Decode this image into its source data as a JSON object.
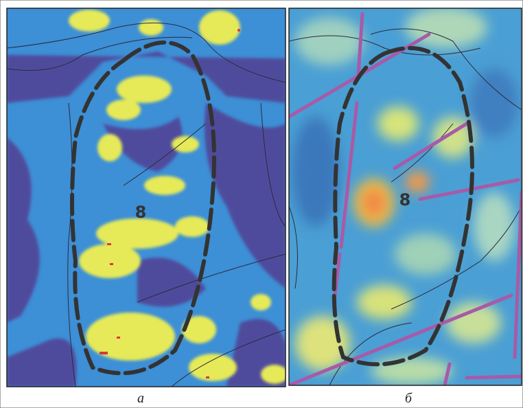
{
  "panels": [
    {
      "label": "а",
      "region_label": "8"
    },
    {
      "label": "б",
      "region_label": "8"
    }
  ]
}
